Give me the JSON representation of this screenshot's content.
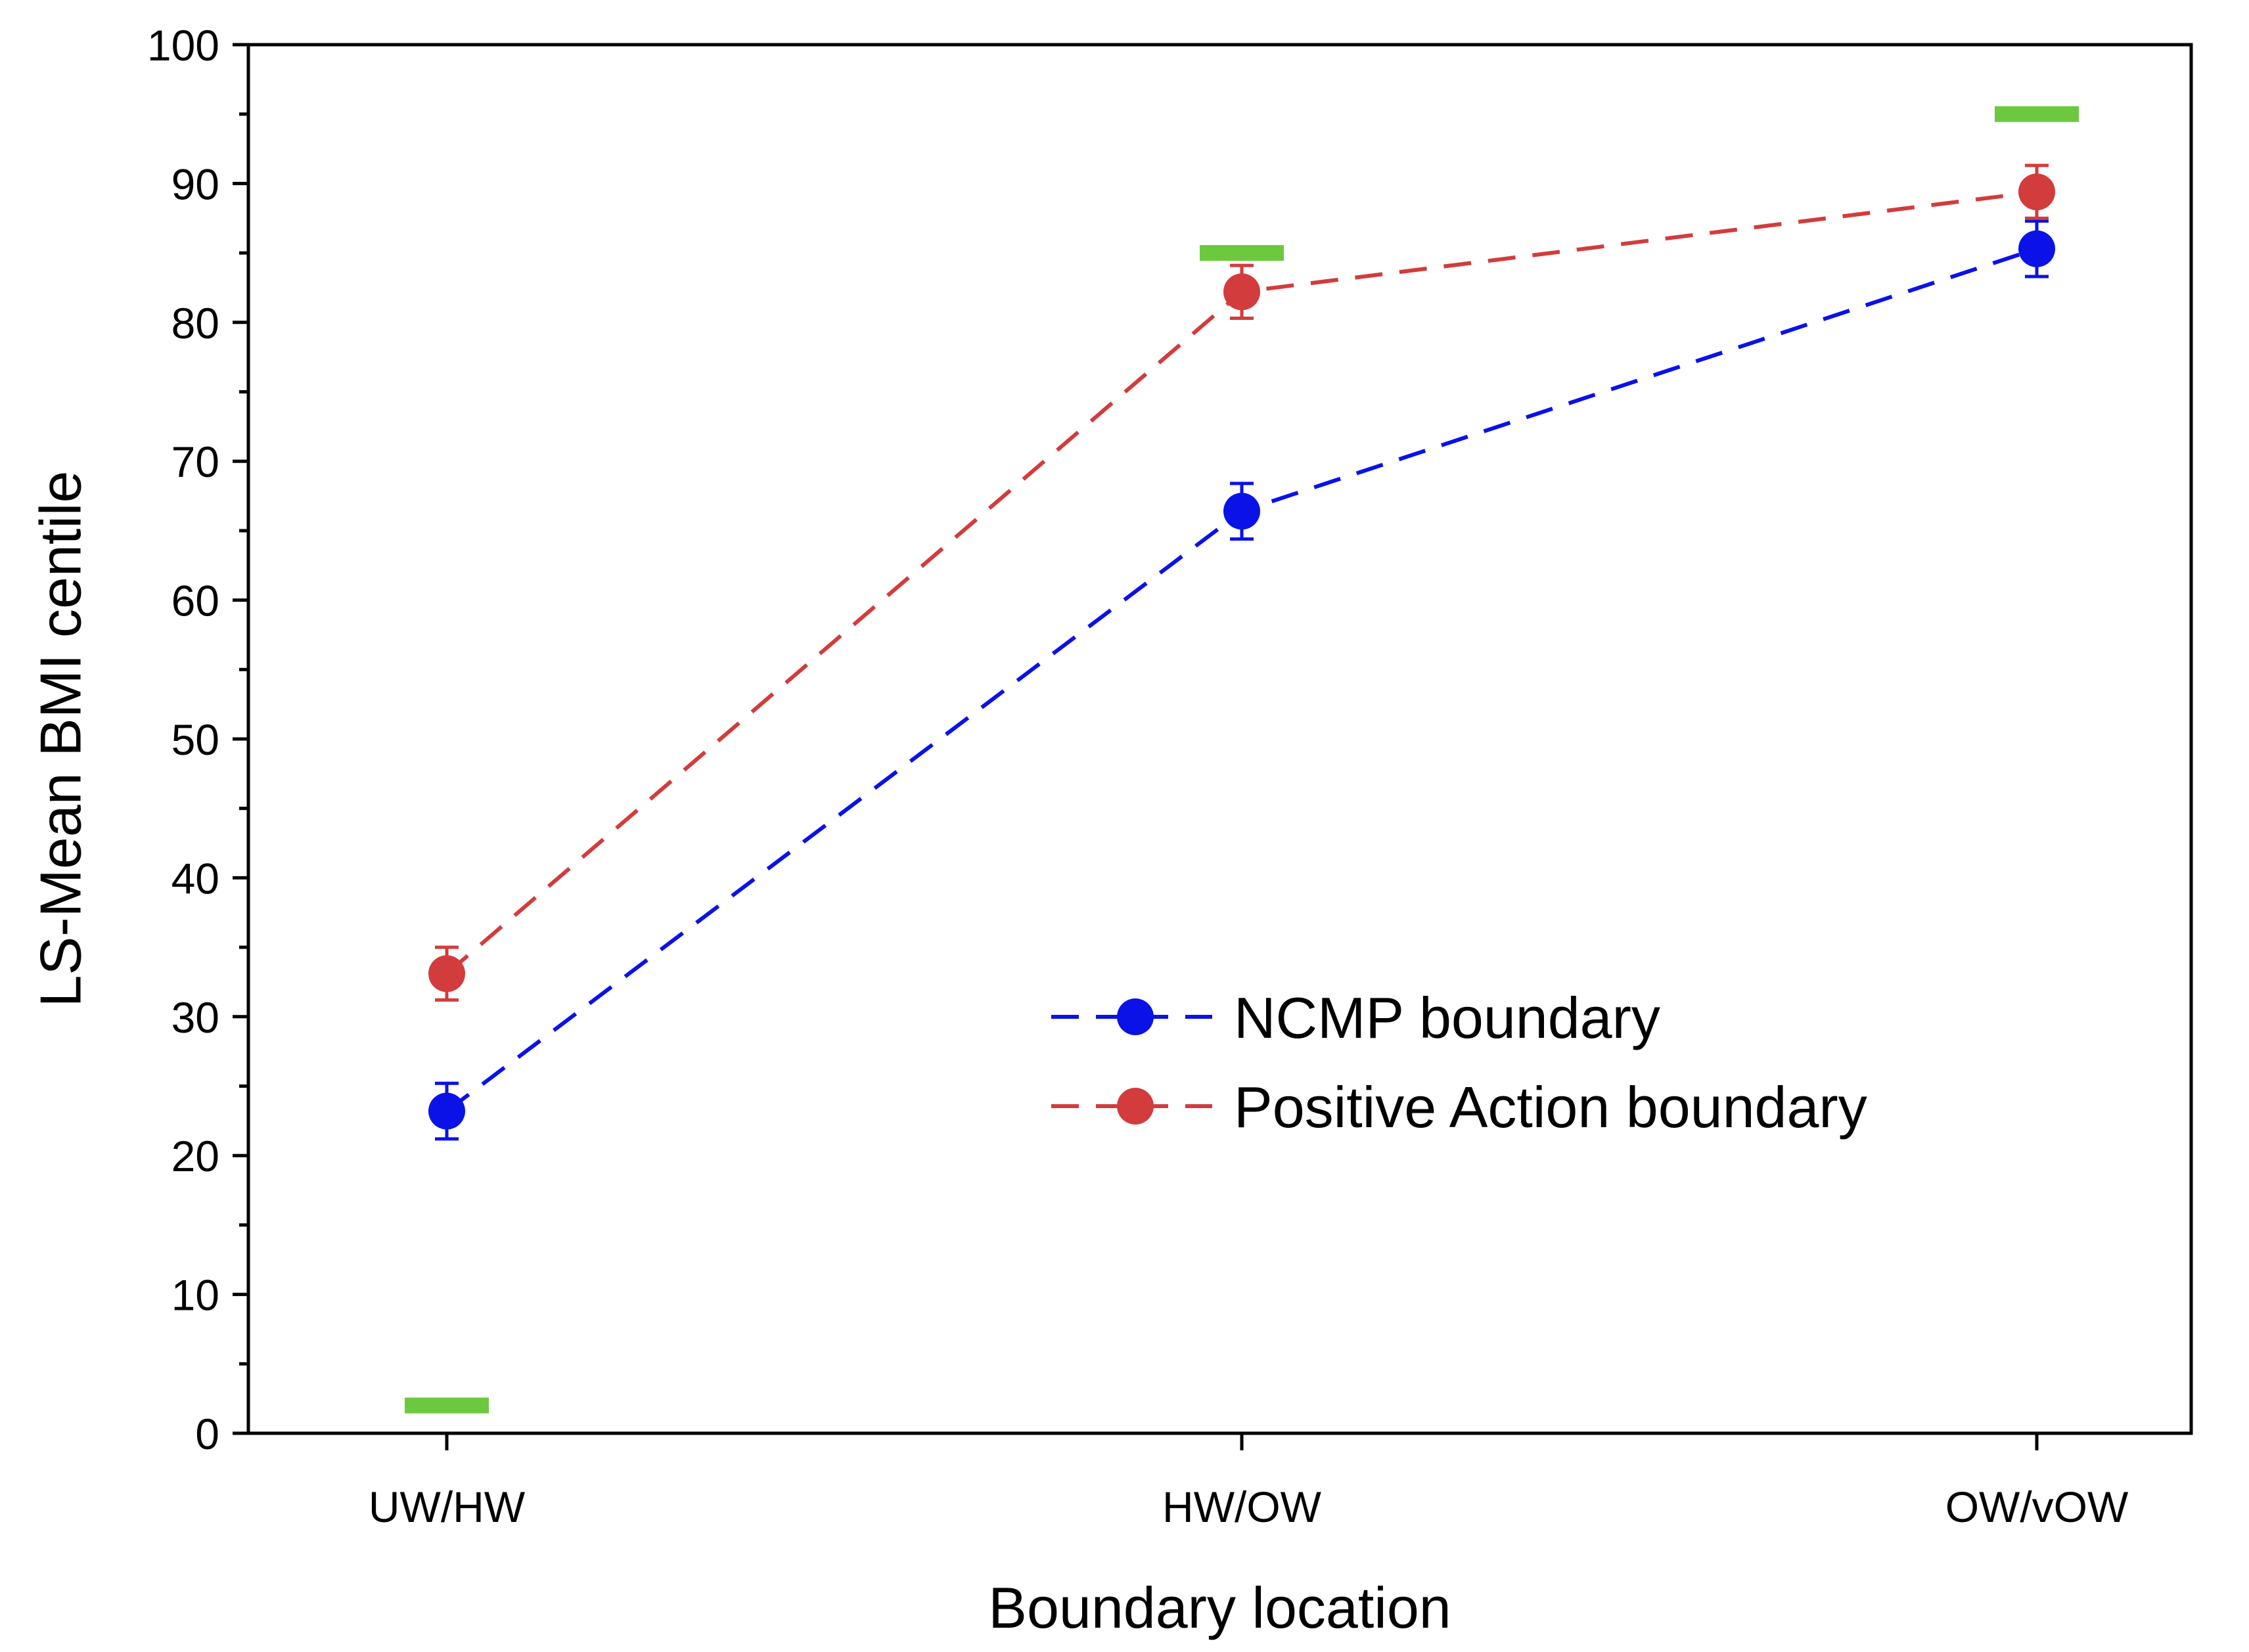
{
  "chart_data": {
    "type": "line",
    "title": "",
    "xlabel": "Boundary location",
    "ylabel": "LS-Mean BMI centile",
    "categories": [
      "UW/HW",
      "HW/OW",
      "OW/vOW"
    ],
    "ylim": [
      0,
      100
    ],
    "yticks": [
      0,
      10,
      20,
      30,
      40,
      50,
      60,
      70,
      80,
      90,
      100
    ],
    "grid": false,
    "legend_position": "center-right",
    "series": [
      {
        "name": "NCMP boundary",
        "color": "#0a12e8",
        "line_style": "dashed",
        "values": [
          23.2,
          66.4,
          85.3
        ],
        "error": [
          2.0,
          2.0,
          2.0
        ]
      },
      {
        "name": "Positive Action boundary",
        "color": "#d23c3c",
        "line_style": "dashed",
        "values": [
          33.1,
          82.2,
          89.4
        ],
        "error": [
          1.9,
          1.9,
          1.9
        ]
      }
    ],
    "reference_markers": {
      "color": "#6cc93f",
      "values": [
        2,
        85,
        95
      ]
    }
  }
}
